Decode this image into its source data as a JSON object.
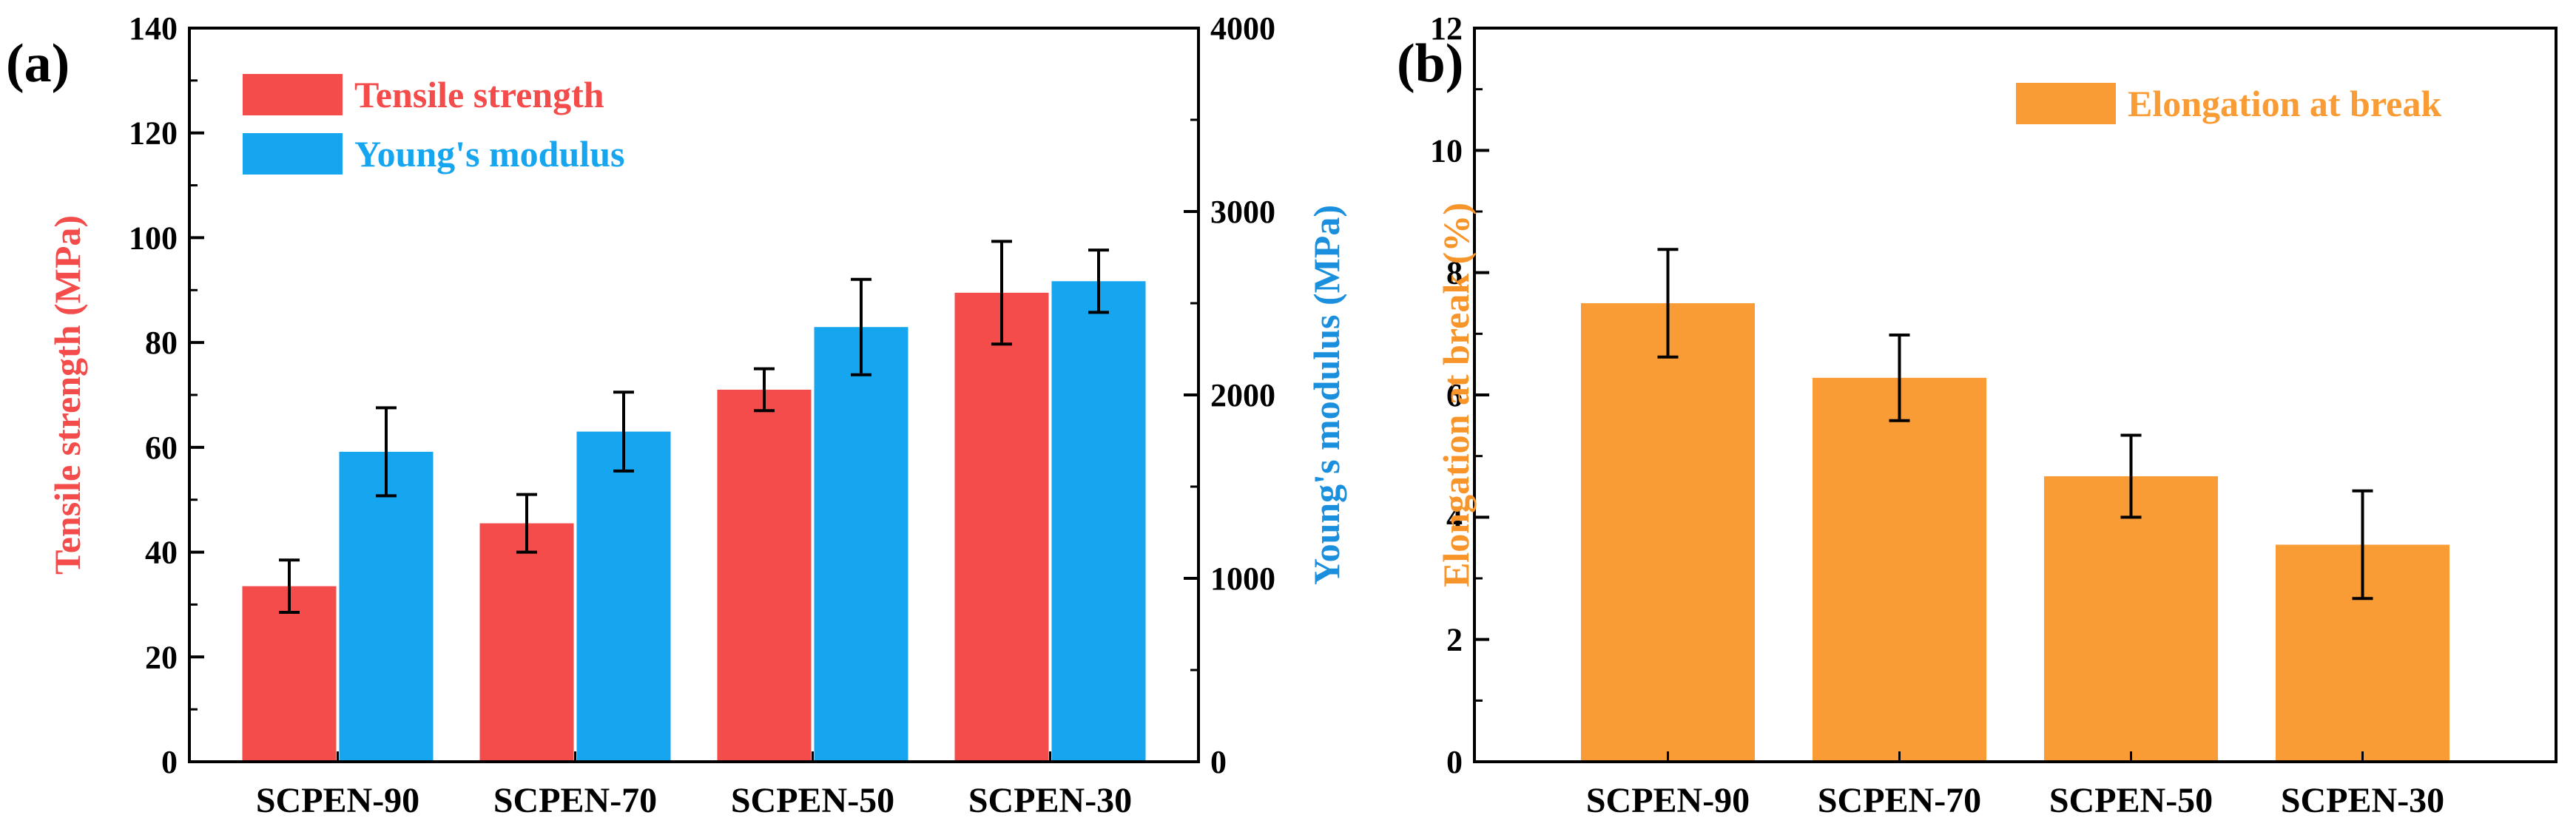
{
  "chart_data": [
    {
      "panel_label": "(a)",
      "type": "bar",
      "categories": [
        "SCPEN-90",
        "SCPEN-70",
        "SCPEN-50",
        "SCPEN-30"
      ],
      "y_left": {
        "label": "Tensile strength (MPa)",
        "lim": [
          0,
          140
        ],
        "ticks": [
          0,
          20,
          40,
          60,
          80,
          100,
          120,
          140
        ],
        "color": "#f44b4b"
      },
      "y_right": {
        "label": "Young's modulus (MPa)",
        "lim": [
          0,
          4000
        ],
        "ticks": [
          0,
          1000,
          2000,
          3000,
          4000
        ],
        "color": "#1a8fde"
      },
      "series": [
        {
          "name": "Tensile strength",
          "axis": "left",
          "color": "#f44b4b",
          "values": [
            33.5,
            45.5,
            71,
            89.5
          ],
          "errors": [
            5,
            5.5,
            4,
            9.8
          ]
        },
        {
          "name": "Young's modulus",
          "axis": "right",
          "color": "#16a5ef",
          "values": [
            1690,
            1800,
            2370,
            2620
          ],
          "errors": [
            240,
            215,
            260,
            170
          ]
        }
      ],
      "legend": "top-left"
    },
    {
      "panel_label": "(b)",
      "type": "bar",
      "categories": [
        "SCPEN-90",
        "SCPEN-70",
        "SCPEN-50",
        "SCPEN-30"
      ],
      "y_left": {
        "label": "Elongation at break (%)",
        "lim": [
          0,
          12
        ],
        "ticks": [
          0,
          2,
          4,
          6,
          8,
          10,
          12
        ],
        "color": "#f7952a"
      },
      "series": [
        {
          "name": "Elongation at break",
          "axis": "left",
          "color": "#fa9c35",
          "values": [
            7.5,
            6.28,
            4.67,
            3.55
          ],
          "errors": [
            0.88,
            0.7,
            0.67,
            0.88
          ]
        }
      ],
      "legend": "top-right"
    }
  ]
}
